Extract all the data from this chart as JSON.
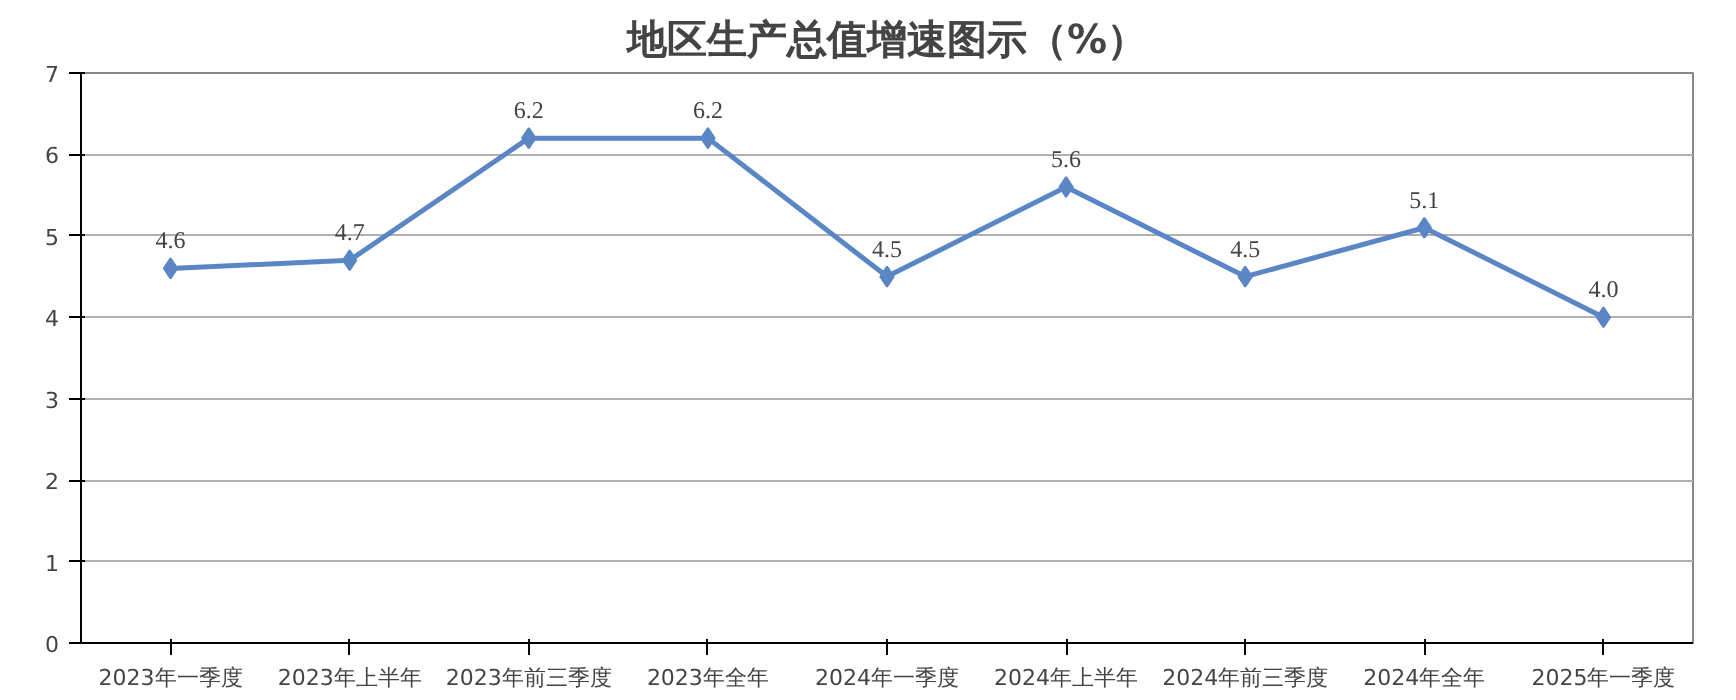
{
  "chart_data": {
    "type": "line",
    "title": "地区生产总值增速图示（%）",
    "categories": [
      "2023年一季度",
      "2023年上半年",
      "2023年前三季度",
      "2023年全年",
      "2024年一季度",
      "2024年上半年",
      "2024年前三季度",
      "2024年全年",
      "2025年一季度"
    ],
    "values": [
      4.6,
      4.7,
      6.2,
      6.2,
      4.5,
      5.6,
      4.5,
      5.1,
      4.0
    ],
    "value_labels": [
      "4.6",
      "4.7",
      "6.2",
      "6.2",
      "4.5",
      "5.6",
      "4.5",
      "5.1",
      "4.0"
    ],
    "color": "#5b86c5",
    "marker": "diamond",
    "line_style": "solid",
    "ylim": [
      0,
      7
    ],
    "yticks": [
      0,
      1,
      2,
      3,
      4,
      5,
      6,
      7
    ],
    "grid": "y"
  }
}
